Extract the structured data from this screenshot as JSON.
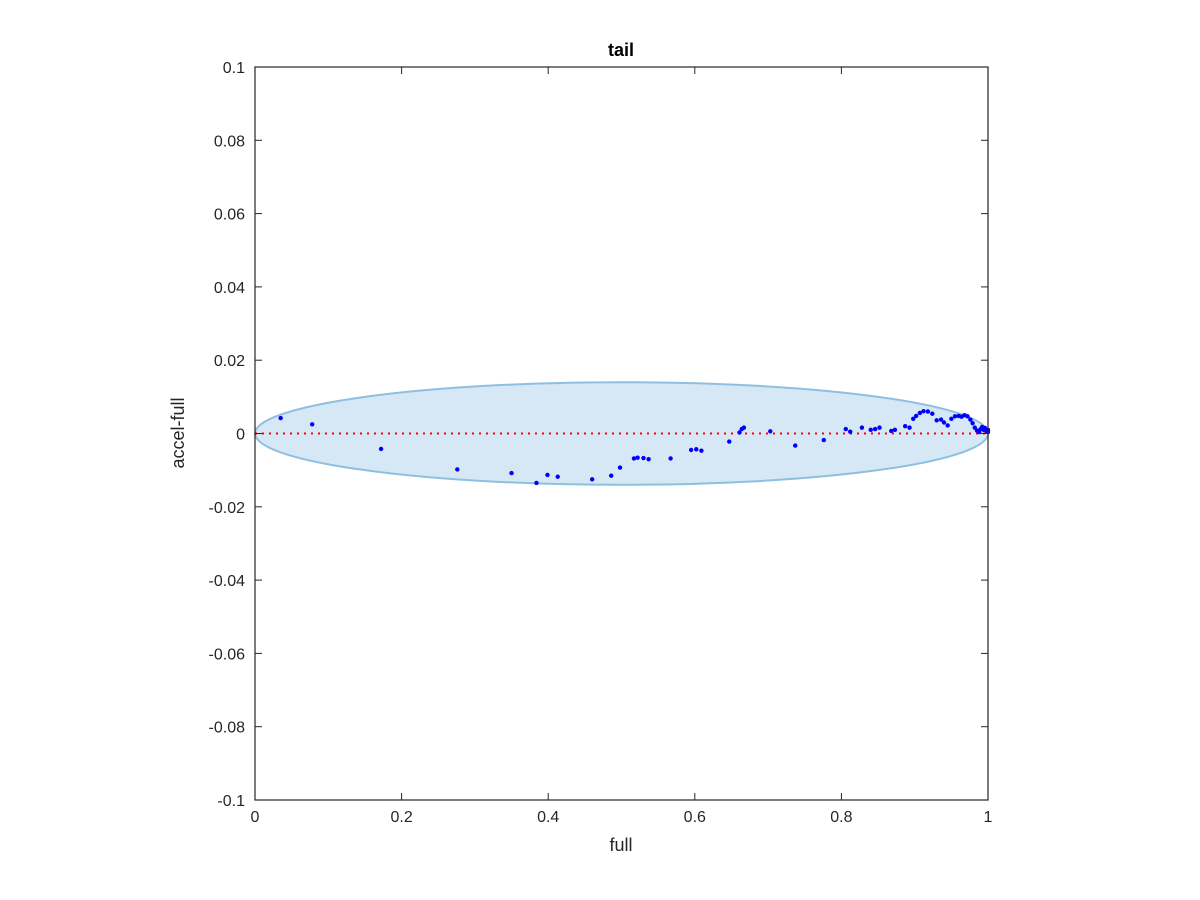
{
  "chart_data": {
    "type": "scatter",
    "title": "tail",
    "xlabel": "full",
    "ylabel": "accel-full",
    "xlim": [
      0,
      1
    ],
    "ylim": [
      -0.1,
      0.1
    ],
    "x_ticks": [
      0,
      0.2,
      0.4,
      0.6,
      0.8,
      1
    ],
    "x_tick_labels": [
      "0",
      "0.2",
      "0.4",
      "0.6",
      "0.8",
      "1"
    ],
    "y_ticks": [
      -0.1,
      -0.08,
      -0.06,
      -0.04,
      -0.02,
      0,
      0.02,
      0.04,
      0.06,
      0.08,
      0.1
    ],
    "y_tick_labels": [
      "-0.1",
      "-0.08",
      "-0.06",
      "-0.04",
      "-0.02",
      "0",
      "0.02",
      "0.04",
      "0.06",
      "0.08",
      "0.1"
    ],
    "grid": false,
    "legend": "none",
    "reference_line": {
      "y": 0,
      "style": "dotted",
      "color": "#ff0000"
    },
    "ellipse": {
      "cx": 0.5,
      "cy": 0,
      "rx": 0.5,
      "ry": 0.014,
      "fill": "#d6e8f5",
      "stroke": "#8fbfe0"
    },
    "series": [
      {
        "color": "#0000ff",
        "points": [
          [
            0.035,
            0.0042
          ],
          [
            0.078,
            0.0025
          ],
          [
            0.172,
            -0.0042
          ],
          [
            0.276,
            -0.0098
          ],
          [
            0.35,
            -0.0108
          ],
          [
            0.384,
            -0.0135
          ],
          [
            0.399,
            -0.0113
          ],
          [
            0.413,
            -0.0118
          ],
          [
            0.46,
            -0.0125
          ],
          [
            0.486,
            -0.0115
          ],
          [
            0.498,
            -0.0093
          ],
          [
            0.517,
            -0.0068
          ],
          [
            0.522,
            -0.0066
          ],
          [
            0.53,
            -0.0067
          ],
          [
            0.537,
            -0.007
          ],
          [
            0.567,
            -0.0068
          ],
          [
            0.595,
            -0.0045
          ],
          [
            0.602,
            -0.0043
          ],
          [
            0.609,
            -0.0047
          ],
          [
            0.647,
            -0.0022
          ],
          [
            0.661,
            0.0003
          ],
          [
            0.664,
            0.0012
          ],
          [
            0.667,
            0.0016
          ],
          [
            0.703,
            0.0006
          ],
          [
            0.737,
            -0.0033
          ],
          [
            0.776,
            -0.0018
          ],
          [
            0.806,
            0.0012
          ],
          [
            0.812,
            0.0005
          ],
          [
            0.828,
            0.0016
          ],
          [
            0.84,
            0.001
          ],
          [
            0.846,
            0.0012
          ],
          [
            0.852,
            0.0016
          ],
          [
            0.868,
            0.0007
          ],
          [
            0.873,
            0.001
          ],
          [
            0.887,
            0.002
          ],
          [
            0.893,
            0.0016
          ],
          [
            0.898,
            0.004
          ],
          [
            0.902,
            0.0048
          ],
          [
            0.907,
            0.0056
          ],
          [
            0.912,
            0.0061
          ],
          [
            0.918,
            0.006
          ],
          [
            0.924,
            0.0054
          ],
          [
            0.93,
            0.0036
          ],
          [
            0.936,
            0.0038
          ],
          [
            0.94,
            0.003
          ],
          [
            0.945,
            0.0022
          ],
          [
            0.95,
            0.004
          ],
          [
            0.955,
            0.0047
          ],
          [
            0.96,
            0.0048
          ],
          [
            0.964,
            0.0046
          ],
          [
            0.968,
            0.005
          ],
          [
            0.972,
            0.0047
          ],
          [
            0.976,
            0.0038
          ],
          [
            0.979,
            0.0028
          ],
          [
            0.982,
            0.0016
          ],
          [
            0.985,
            0.0008
          ],
          [
            0.988,
            0.0004
          ],
          [
            0.99,
            0.0012
          ],
          [
            0.992,
            0.0018
          ],
          [
            0.994,
            0.001
          ],
          [
            0.996,
            0.0015
          ],
          [
            0.998,
            0.0006
          ],
          [
            1.0,
            0.0004
          ],
          [
            1.0,
            0.001
          ]
        ]
      }
    ]
  }
}
